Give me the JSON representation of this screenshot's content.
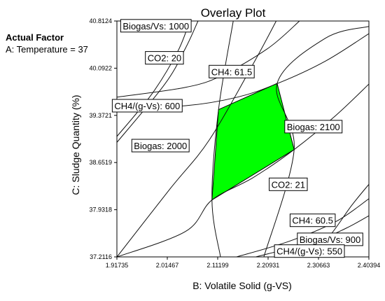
{
  "factor_panel": {
    "heading": "Actual Factor",
    "value": "A: Temperature = 37"
  },
  "chart_data": {
    "type": "overlay-contour",
    "title": "Overlay Plot",
    "xlabel": "B: Volatile Solid (g-VS)",
    "ylabel": "C: Sludge Quantity (%)",
    "xlim": [
      1.91735,
      2.40394
    ],
    "ylim": [
      37.2116,
      40.8124
    ],
    "x_ticks": [
      "1.91735",
      "2.01467",
      "2.11199",
      "2.20931",
      "2.30663",
      "2.40394"
    ],
    "y_ticks": [
      "37.2116",
      "37.9318",
      "38.6519",
      "39.3721",
      "40.0922",
      "40.8124"
    ],
    "grid": false,
    "feasible_region": {
      "color": "#00ff00",
      "vertices": [
        [
          2.1136,
          39.46
        ],
        [
          2.2267,
          39.86
        ],
        [
          2.2596,
          38.85
        ],
        [
          2.1009,
          38.08
        ]
      ]
    },
    "contours": [
      {
        "label": "Biogas/Vs: 1000",
        "points": [
          [
            1.9174,
            39.05
          ],
          [
            1.985,
            39.7
          ],
          [
            2.035,
            40.35
          ],
          [
            2.058,
            40.8124
          ]
        ]
      },
      {
        "label": "CO2: 20",
        "points": [
          [
            1.9174,
            38.96
          ],
          [
            2.01,
            39.85
          ],
          [
            2.05,
            40.4
          ],
          [
            2.074,
            40.8124
          ]
        ]
      },
      {
        "label": "CH4: 61.5",
        "points": [
          [
            1.9174,
            39.5
          ],
          [
            2.05,
            39.52
          ],
          [
            2.15,
            39.65
          ],
          [
            2.228,
            39.86
          ],
          [
            2.32,
            40.2
          ],
          [
            2.4039,
            40.62
          ]
        ]
      },
      {
        "label": "CH4/(g-Vs): 600",
        "points": [
          [
            1.9174,
            39.65
          ],
          [
            2.05,
            39.8
          ],
          [
            2.12,
            39.98
          ],
          [
            2.21,
            40.4
          ],
          [
            2.27,
            40.8124
          ]
        ]
      },
      {
        "label": "Biogas: 2000",
        "points": [
          [
            1.9174,
            37.21
          ],
          [
            2.02,
            38.25
          ],
          [
            2.0961,
            39.0
          ],
          [
            2.18,
            40.15
          ],
          [
            2.225,
            40.8124
          ]
        ]
      },
      {
        "label": "Biogas: 2100",
        "points": [
          [
            2.1174,
            37.21
          ],
          [
            2.1009,
            38.08
          ],
          [
            2.1136,
            39.46
          ],
          [
            2.142,
            40.8124
          ]
        ]
      },
      {
        "label": "CO2: 21",
        "points": [
          [
            2.201,
            37.21
          ],
          [
            2.2596,
            38.85
          ],
          [
            2.2267,
            39.86
          ],
          [
            2.32,
            40.55
          ],
          [
            2.4039,
            40.73
          ]
        ]
      },
      {
        "label": "CH4: 60.5",
        "points": [
          [
            1.9174,
            37.21
          ],
          [
            2.05,
            37.6
          ],
          [
            2.1009,
            38.08
          ],
          [
            2.18,
            38.42
          ],
          [
            2.2596,
            38.85
          ],
          [
            2.34,
            39.37
          ],
          [
            2.4039,
            39.85
          ]
        ]
      },
      {
        "label": "Biogas/Vs: 900",
        "points": [
          [
            2.148,
            37.21
          ],
          [
            2.25,
            37.45
          ],
          [
            2.34,
            37.75
          ],
          [
            2.4039,
            38.1
          ]
        ]
      },
      {
        "label": "CH4/(g-Vs): 550",
        "points": [
          [
            2.185,
            37.21
          ],
          [
            2.3,
            37.45
          ],
          [
            2.36,
            37.65
          ],
          [
            2.4039,
            37.84
          ]
        ]
      },
      {
        "points": [
          [
            2.2896,
            37.21
          ],
          [
            2.33,
            37.55
          ],
          [
            2.37,
            37.99
          ],
          [
            2.4039,
            38.32
          ]
        ]
      }
    ],
    "contour_labels": [
      {
        "text": "Biogas/Vs: 1000",
        "x": 1.9927,
        "y": 40.74
      },
      {
        "text": "CO2: 20",
        "x": 2.0092,
        "y": 40.25
      },
      {
        "text": "CH4: 61.5",
        "x": 2.139,
        "y": 40.04
      },
      {
        "text": "CH4/(g-Vs): 600",
        "x": 1.9759,
        "y": 39.52
      },
      {
        "text": "Biogas: 2000",
        "x": 2.0015,
        "y": 38.91
      },
      {
        "text": "Biogas: 2100",
        "x": 2.2968,
        "y": 39.2
      },
      {
        "text": "CO2: 21",
        "x": 2.2482,
        "y": 38.32
      },
      {
        "text": "CH4: 60.5",
        "x": 2.2953,
        "y": 37.77
      },
      {
        "text": "Biogas/Vs: 900",
        "x": 2.3289,
        "y": 37.48
      },
      {
        "text": "CH4/(g-Vs): 550",
        "x": 2.2892,
        "y": 37.3
      }
    ]
  }
}
